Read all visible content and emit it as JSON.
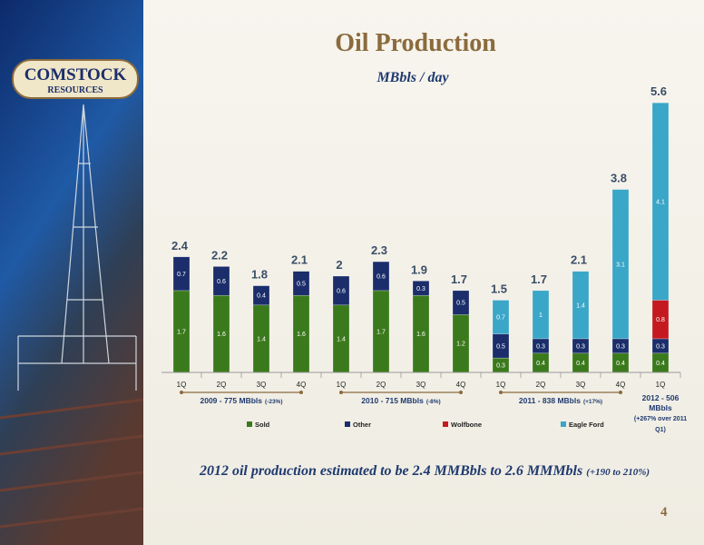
{
  "logo": {
    "line1": "COMSTOCK",
    "line2": "RESOURCES"
  },
  "chart_data": {
    "type": "stacked-bar",
    "title": "Oil Production",
    "subtitle": "MBbls / day",
    "categories": [
      "1Q",
      "2Q",
      "3Q",
      "4Q",
      "1Q",
      "2Q",
      "3Q",
      "4Q",
      "1Q",
      "2Q",
      "3Q",
      "4Q",
      "1Q"
    ],
    "series": [
      {
        "name": "Sold",
        "color": "#3b7a1c",
        "values": [
          1.7,
          1.6,
          1.4,
          1.6,
          1.4,
          1.7,
          1.6,
          1.2,
          0.3,
          0.4,
          0.4,
          0.4,
          0.4
        ]
      },
      {
        "name": "Other",
        "color": "#1b2e6b",
        "values": [
          0.7,
          0.6,
          0.4,
          0.5,
          0.6,
          0.6,
          0.3,
          0.5,
          0.5,
          0.3,
          0.3,
          0.3,
          0.3
        ]
      },
      {
        "name": "Wolfbone",
        "color": "#c41a1f",
        "values": [
          null,
          null,
          null,
          null,
          null,
          null,
          null,
          null,
          null,
          null,
          null,
          null,
          0.8
        ]
      },
      {
        "name": "Eagle Ford",
        "color": "#3aa6c8",
        "values": [
          null,
          null,
          null,
          null,
          null,
          null,
          null,
          null,
          0.7,
          1.0,
          1.4,
          3.1,
          4.1
        ]
      }
    ],
    "totals": [
      2.4,
      2.2,
      1.8,
      2.1,
      2.0,
      2.3,
      1.9,
      1.7,
      1.5,
      1.7,
      2.1,
      3.8,
      5.6
    ],
    "ylim": [
      0,
      6
    ],
    "groups": [
      {
        "label": "2009 - 775 MBbls",
        "note": "(-23%)"
      },
      {
        "label": "2010 - 715 MBbls",
        "note": "(-8%)"
      },
      {
        "label": "2011 - 838 MBbls",
        "note": "(+17%)"
      },
      {
        "label": "2012 - 506 MBbls",
        "note": "(+267% over 2011 Q1)"
      }
    ],
    "footnote": "2012 oil production estimated to be 2.4 MMBbls to 2.6 MMMbls",
    "footnote_note": "(+190 to 210%)"
  },
  "page_number": "4"
}
